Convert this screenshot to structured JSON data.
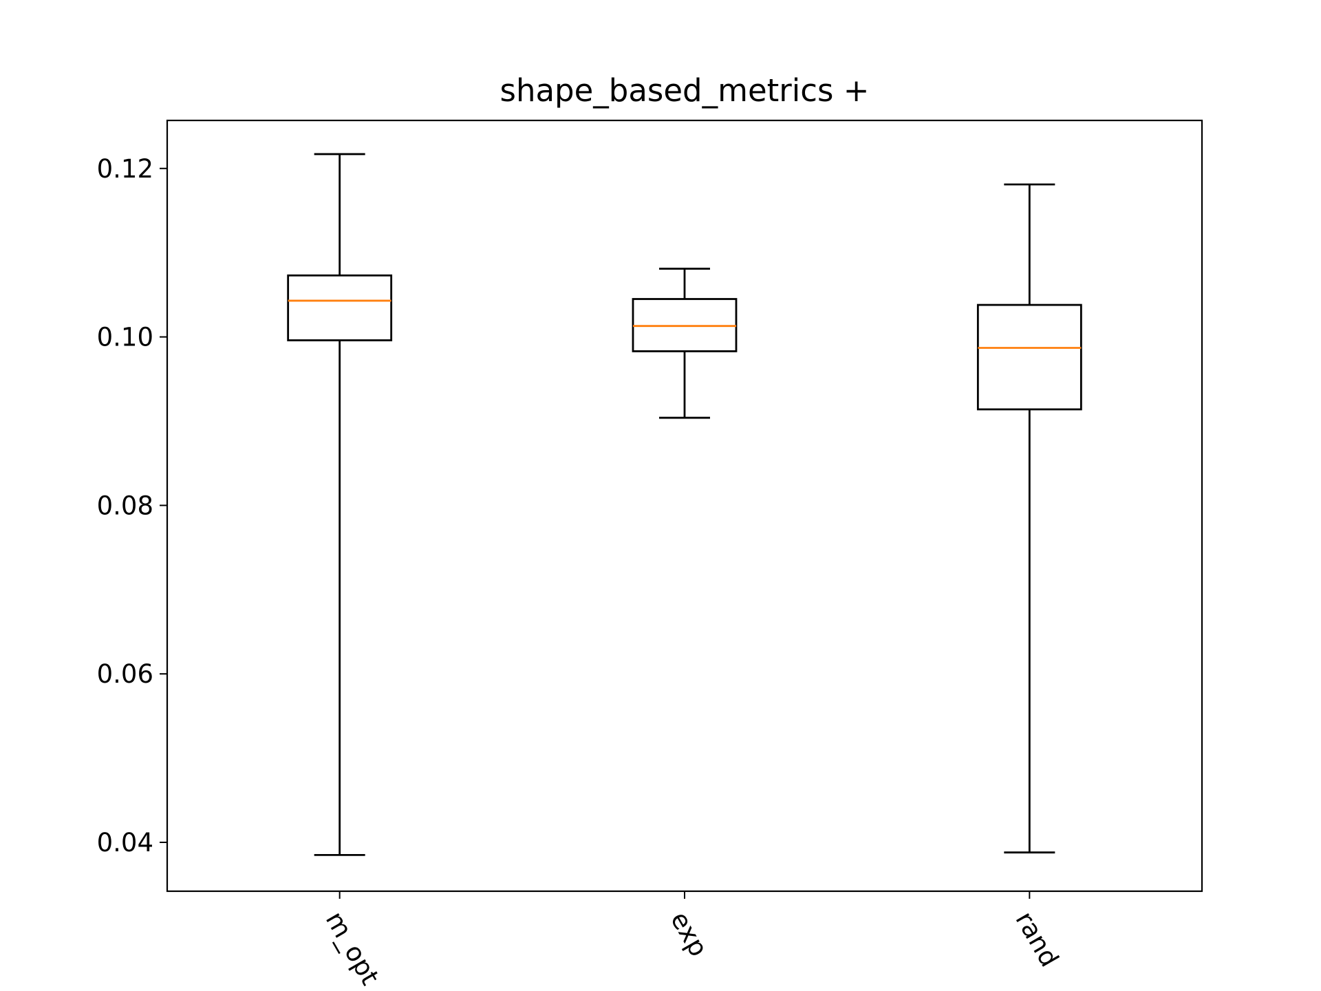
{
  "chart_data": {
    "type": "box",
    "title": "shape_based_metrics +",
    "xlabel": "",
    "ylabel": "",
    "categories": [
      "m_opt",
      "exp",
      "rand"
    ],
    "boxes": [
      {
        "category": "m_opt",
        "whisker_low": 0.0385,
        "q1": 0.0996,
        "median": 0.1043,
        "q3": 0.1073,
        "whisker_high": 0.1217
      },
      {
        "category": "exp",
        "whisker_low": 0.0904,
        "q1": 0.0983,
        "median": 0.1013,
        "q3": 0.1045,
        "whisker_high": 0.1081
      },
      {
        "category": "rand",
        "whisker_low": 0.0388,
        "q1": 0.0914,
        "median": 0.0987,
        "q3": 0.1038,
        "whisker_high": 0.1181
      }
    ],
    "ylim": [
      0.0342,
      0.1257
    ],
    "yticks": [
      0.04,
      0.06,
      0.08,
      0.1,
      0.12
    ],
    "ytick_labels": [
      "0.04",
      "0.06",
      "0.08",
      "0.10",
      "0.12"
    ],
    "xtick_rotation_deg": -60,
    "grid": false,
    "legend": "none",
    "colors": {
      "box": "#000000",
      "median": "#ff7f0e",
      "whisker": "#000000",
      "axes": "#000000",
      "background": "#ffffff"
    }
  }
}
